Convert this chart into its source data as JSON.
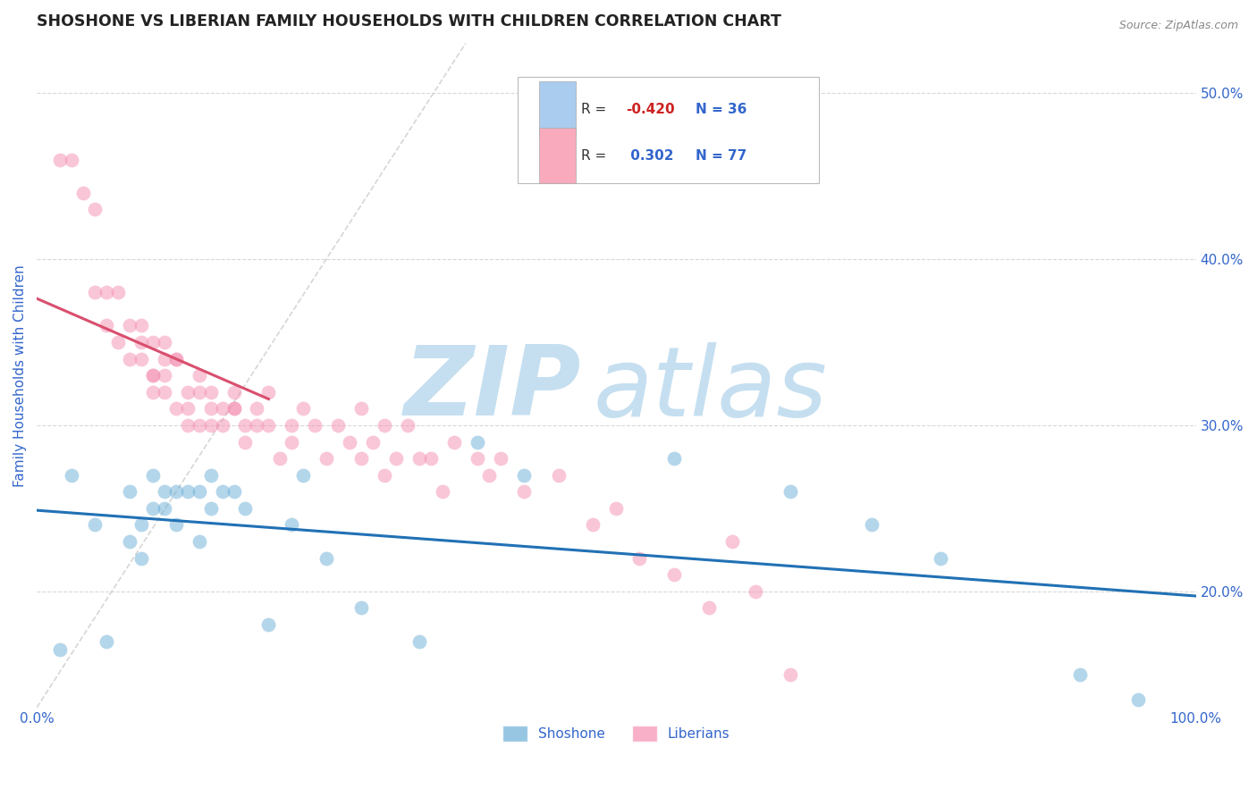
{
  "title": "SHOSHONE VS LIBERIAN FAMILY HOUSEHOLDS WITH CHILDREN CORRELATION CHART",
  "source": "Source: ZipAtlas.com",
  "xlabel": "",
  "ylabel": "Family Households with Children",
  "xlim": [
    0,
    100
  ],
  "ylim": [
    13,
    53
  ],
  "x_ticks": [
    0,
    10,
    20,
    30,
    40,
    50,
    60,
    70,
    80,
    90,
    100
  ],
  "y_ticks": [
    20,
    30,
    40,
    50
  ],
  "shoshone_color": "#6baed6",
  "liberian_color": "#f48fb1",
  "shoshone_trend_color": "#2171b5",
  "liberian_trend_color": "#d94f6e",
  "ref_line_color": "#cccccc",
  "background_color": "#ffffff",
  "grid_color": "#d8d8d8",
  "watermark_zip": "ZIP",
  "watermark_atlas": "atlas",
  "watermark_color_zip": "#c5dff0",
  "watermark_color_atlas": "#c5dff0",
  "title_color": "#222222",
  "axis_label_color": "#3366cc",
  "tick_label_color": "#3366cc",
  "legend_box_color_shoshone": "#aaccee",
  "legend_box_color_liberian": "#f9aabc",
  "legend_r_neg_color": "#cc2222",
  "legend_r_pos_color": "#3366cc",
  "legend_n_color": "#3366cc",
  "shoshone_x": [
    2,
    3,
    5,
    6,
    8,
    8,
    9,
    9,
    10,
    10,
    11,
    11,
    12,
    12,
    13,
    14,
    14,
    15,
    15,
    16,
    17,
    18,
    20,
    22,
    23,
    25,
    28,
    33,
    38,
    42,
    55,
    65,
    72,
    78,
    90,
    95
  ],
  "shoshone_y": [
    16.5,
    27,
    24,
    17,
    26,
    23,
    24,
    22,
    25,
    27,
    25,
    26,
    24,
    26,
    26,
    26,
    23,
    25,
    27,
    26,
    26,
    25,
    18,
    24,
    27,
    22,
    19,
    17,
    29,
    27,
    28,
    26,
    24,
    22,
    15,
    13.5
  ],
  "liberian_x": [
    2,
    3,
    4,
    5,
    5,
    6,
    6,
    7,
    7,
    8,
    8,
    9,
    9,
    9,
    10,
    10,
    10,
    10,
    11,
    11,
    11,
    11,
    12,
    12,
    12,
    13,
    13,
    13,
    14,
    14,
    14,
    15,
    15,
    15,
    16,
    16,
    17,
    17,
    17,
    18,
    18,
    19,
    19,
    20,
    20,
    21,
    22,
    22,
    23,
    24,
    25,
    26,
    27,
    28,
    28,
    29,
    30,
    30,
    31,
    32,
    33,
    34,
    35,
    36,
    38,
    39,
    40,
    42,
    45,
    48,
    50,
    52,
    55,
    58,
    60,
    62,
    65
  ],
  "liberian_y": [
    46,
    46,
    44,
    43,
    38,
    38,
    36,
    38,
    35,
    36,
    34,
    36,
    35,
    34,
    35,
    33,
    32,
    33,
    33,
    34,
    35,
    32,
    31,
    34,
    34,
    32,
    31,
    30,
    33,
    30,
    32,
    31,
    30,
    32,
    31,
    30,
    31,
    32,
    31,
    30,
    29,
    30,
    31,
    30,
    32,
    28,
    29,
    30,
    31,
    30,
    28,
    30,
    29,
    28,
    31,
    29,
    30,
    27,
    28,
    30,
    28,
    28,
    26,
    29,
    28,
    27,
    28,
    26,
    27,
    24,
    25,
    22,
    21,
    19,
    23,
    20,
    15
  ]
}
